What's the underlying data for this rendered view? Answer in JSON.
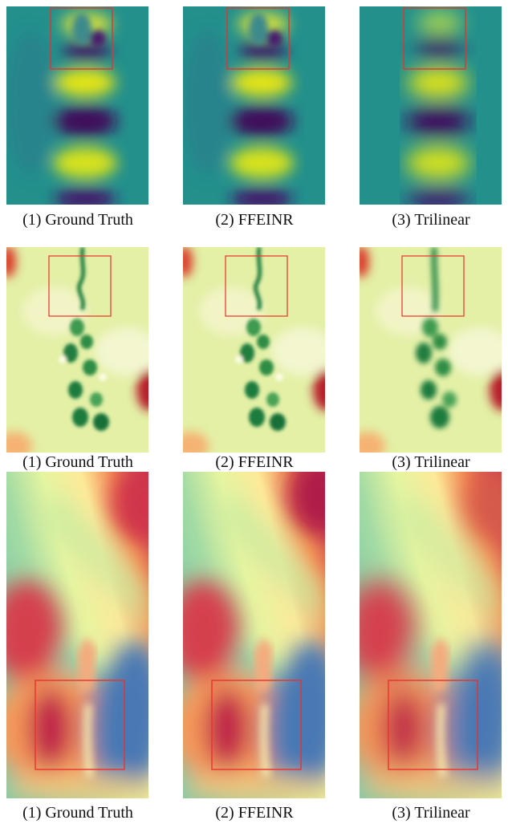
{
  "figure": {
    "rows": [
      {
        "field": "wave-field",
        "colormap": "viridis",
        "panels": [
          {
            "caption": "(1) Ground Truth"
          },
          {
            "caption": "(2) FFEINR"
          },
          {
            "caption": "(3) Trilinear"
          }
        ]
      },
      {
        "field": "vortex-street-field",
        "colormap": "RdYlGn",
        "panels": [
          {
            "caption": "(1) Ground Truth"
          },
          {
            "caption": "(2) FFEINR"
          },
          {
            "caption": "(3) Trilinear"
          }
        ]
      },
      {
        "field": "flow-field",
        "colormap": "Spectral",
        "panels": [
          {
            "caption": "(1) Ground Truth"
          },
          {
            "caption": "(2) FFEINR"
          },
          {
            "caption": "(3) Trilinear"
          }
        ]
      }
    ],
    "zoom_box_color": "#e8322d"
  }
}
